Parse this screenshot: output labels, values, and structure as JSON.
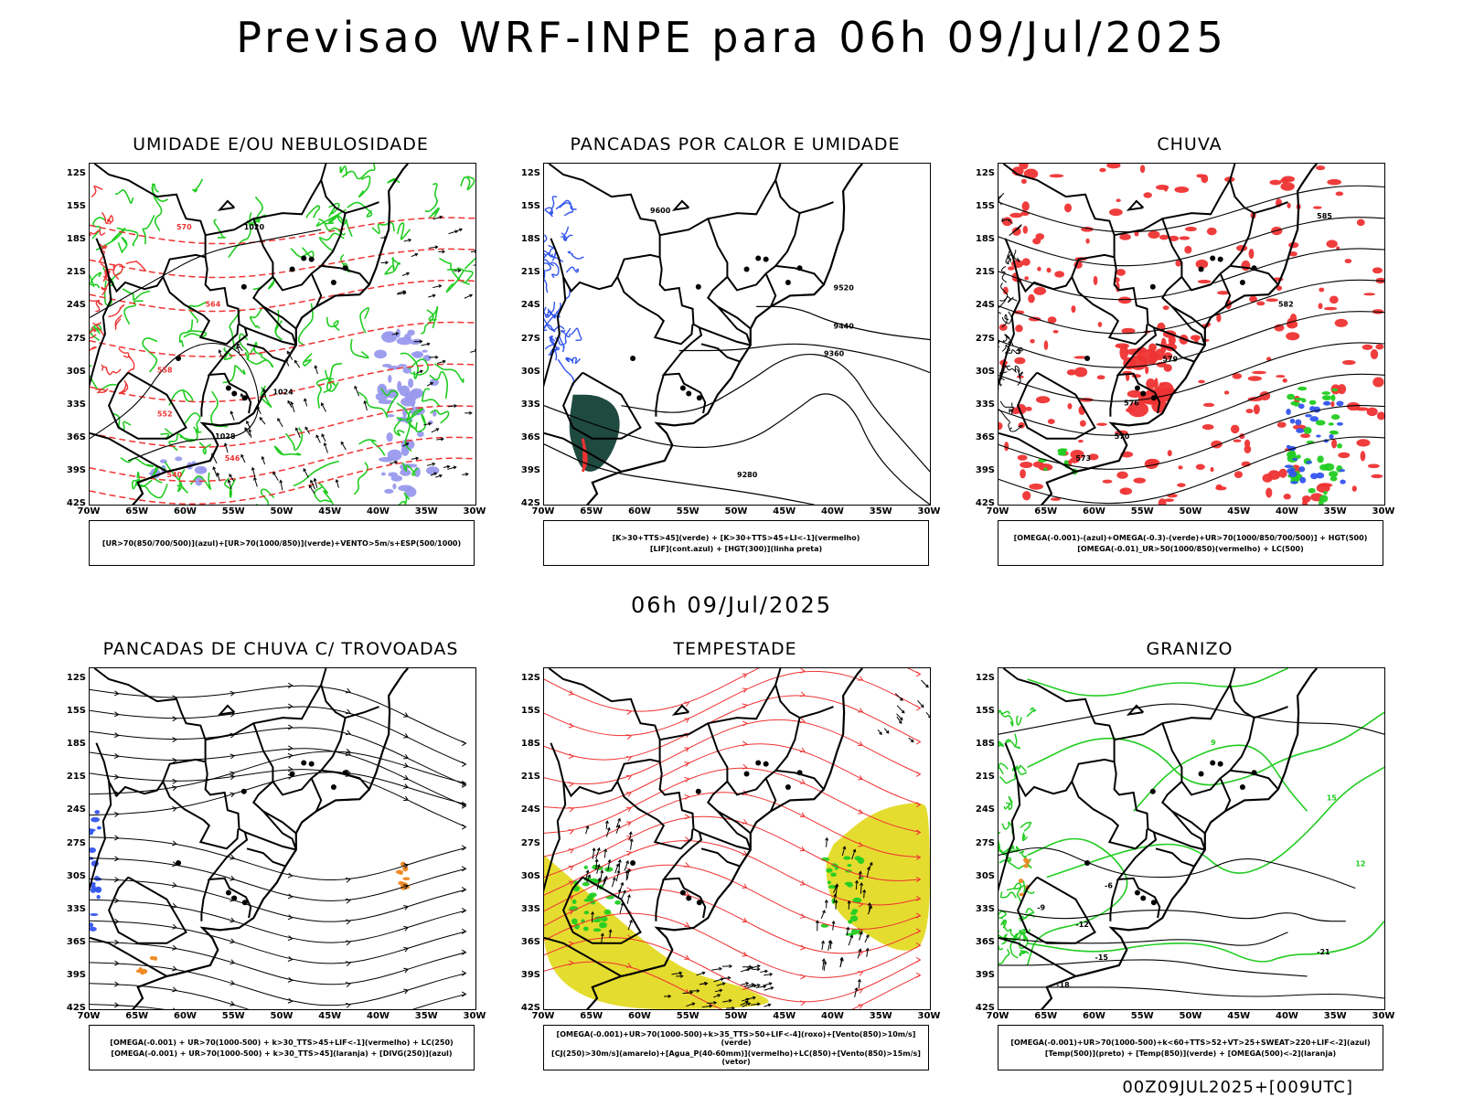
{
  "title": "Previsao WRF-INPE  para 06h 09/Jul/2025",
  "subtitle": "06h 09/Jul/2025",
  "footer": "00Z09JUL2025+[009UTC]",
  "lat_labels": [
    "12S",
    "15S",
    "18S",
    "21S",
    "24S",
    "27S",
    "30S",
    "33S",
    "36S",
    "39S",
    "42S"
  ],
  "lon_labels": [
    "70W",
    "65W",
    "60W",
    "55W",
    "50W",
    "45W",
    "40W",
    "35W",
    "30W"
  ],
  "panels": [
    {
      "id": "umidade",
      "title": "UMIDADE E/OU NEBULOSIDADE",
      "legend": [
        "[UR>70(850/700/500)](azul)+[UR>70(1000/850)](verde)+VENTO>5m/s+ESP(500/1000)"
      ],
      "contour_labels": [
        "1020",
        "1024",
        "1028",
        "570",
        "564",
        "558",
        "552",
        "546",
        "540"
      ]
    },
    {
      "id": "pancadas",
      "title": "PANCADAS POR CALOR E UMIDADE",
      "legend": [
        "[K>30+TTS>45](verde) + [K>30+TTS>45+LI<-1](vermelho)",
        "[LIF](cont.azul) + [HGT(300)](linha preta)"
      ],
      "contour_labels": [
        "9600",
        "9520",
        "9440",
        "9360",
        "9280"
      ]
    },
    {
      "id": "chuva",
      "title": "CHUVA",
      "legend": [
        "[OMEGA(-0.001)-(azul)+OMEGA(-0.3)-(verde)+UR>70(1000/850/700/500)] + HGT(500)",
        "[OMEGA(-0.01)_UR>50(1000/850)(vermelho) + LC(500)"
      ],
      "contour_labels": [
        "585",
        "582",
        "579",
        "576",
        "573",
        "570"
      ]
    },
    {
      "id": "trovoadas",
      "title": "PANCADAS DE CHUVA C/ TROVOADAS",
      "legend": [
        "[OMEGA(-0.001) + UR>70(1000-500) + k>30_TTS>45+LIF<-1](vermelho) + LC(250)",
        "[OMEGA(-0.001) + UR>70(1000-500) + k>30_TTS>45](laranja) + [DIVG(250)](azul)"
      ],
      "contour_labels": []
    },
    {
      "id": "tempestade",
      "title": "TEMPESTADE",
      "legend": [
        "[OMEGA(-0.001)+UR>70(1000-500)+k>35_TTS>50+LIF<-4](roxo)+[Vento(850)>10m/s](verde)",
        "[CJ(250)>30m/s](amarelo)+[Agua_P(40-60mm)](vermelho)+LC(850)+[Vento(850)>15m/s](vetor)"
      ],
      "contour_labels": []
    },
    {
      "id": "granizo",
      "title": "GRANIZO",
      "legend": [
        "[OMEGA(-0.001)+UR>70(1000-500)+k<60+TTS>52+VT>25+SWEAT>220+LIF<-2](azul)",
        "[Temp(500)](preto) + [Temp(850)](verde) + [OMEGA(500)<-2](laranja)"
      ],
      "contour_labels": [
        "-6",
        "-9",
        "-12",
        "-15",
        "-18",
        "-21",
        "9",
        "12",
        "15"
      ]
    }
  ],
  "colors": {
    "black": "#000000",
    "red": "#ee3333",
    "green": "#22cc22",
    "blue": "#3355ee",
    "purple": "#9999ee",
    "yellow": "#e5dc30",
    "orange": "#ee8822",
    "darkgreen": "#1f4a40"
  }
}
